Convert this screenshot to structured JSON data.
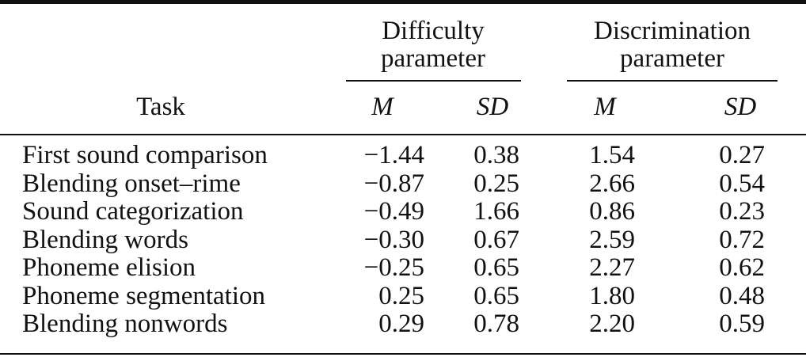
{
  "table": {
    "group_headers": {
      "difficulty_line1": "Difficulty",
      "difficulty_line2": "parameter",
      "discrimination_line1": "Discrimination",
      "discrimination_line2": "parameter"
    },
    "column_headers": {
      "task": "Task",
      "diff_m": "M",
      "diff_sd": "SD",
      "disc_m": "M",
      "disc_sd": "SD"
    },
    "rows": [
      {
        "task": "First sound comparison",
        "diff_m": "−1.44",
        "diff_sd": "0.38",
        "disc_m": "1.54",
        "disc_sd": "0.27"
      },
      {
        "task": "Blending onset–rime",
        "diff_m": "−0.87",
        "diff_sd": "0.25",
        "disc_m": "2.66",
        "disc_sd": "0.54"
      },
      {
        "task": "Sound categorization",
        "diff_m": "−0.49",
        "diff_sd": "1.66",
        "disc_m": "0.86",
        "disc_sd": "0.23"
      },
      {
        "task": "Blending words",
        "diff_m": "−0.30",
        "diff_sd": "0.67",
        "disc_m": "2.59",
        "disc_sd": "0.72"
      },
      {
        "task": "Phoneme elision",
        "diff_m": "−0.25",
        "diff_sd": "0.65",
        "disc_m": "2.27",
        "disc_sd": "0.62"
      },
      {
        "task": "Phoneme segmentation",
        "diff_m": "0.25",
        "diff_sd": "0.65",
        "disc_m": "1.80",
        "disc_sd": "0.48"
      },
      {
        "task": "Blending nonwords",
        "diff_m": "0.29",
        "diff_sd": "0.78",
        "disc_m": "2.20",
        "disc_sd": "0.59"
      }
    ]
  }
}
